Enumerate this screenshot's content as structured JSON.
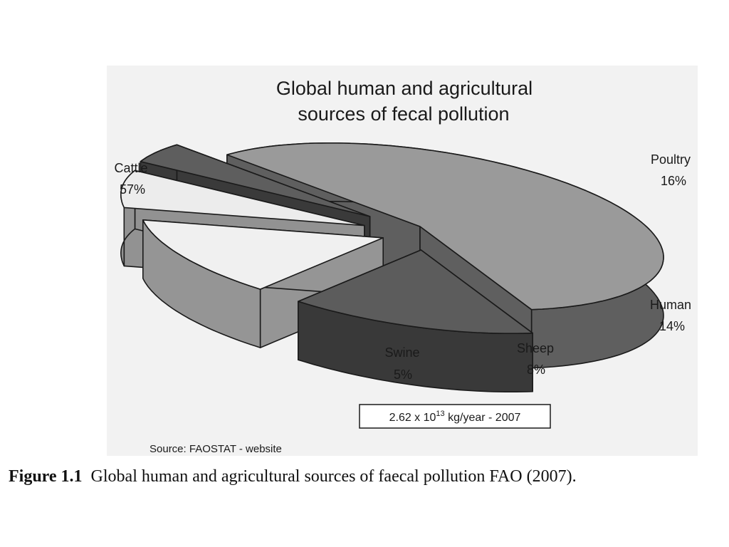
{
  "chart_data": {
    "type": "pie",
    "style": "3d-exploded",
    "title": "Global human and agricultural sources of fecal pollution",
    "title_lines": [
      "Global human and agricultural",
      "sources of fecal pollution"
    ],
    "slices": [
      {
        "name": "Cattle",
        "value": 57,
        "label": "57%",
        "color": "#9a9a9a"
      },
      {
        "name": "Poultry",
        "value": 16,
        "label": "16%",
        "color": "#5c5c5c"
      },
      {
        "name": "Human",
        "value": 14,
        "label": "14%",
        "color": "#f0f0f0"
      },
      {
        "name": "Sheep",
        "value": 8,
        "label": "8%",
        "color": "#ececec"
      },
      {
        "name": "Swine",
        "value": 5,
        "label": "5%",
        "color": "#5e5e5e"
      }
    ],
    "total_box": {
      "prefix": "2.62 x 10",
      "exponent": "13",
      "suffix": " kg/year - 2007"
    },
    "source": "Source: FAOSTAT  - website"
  },
  "caption": {
    "label": "Figure 1.1",
    "text": "Global human and agricultural sources of faecal pollution FAO (2007)."
  },
  "colors": {
    "panel_background": "#f2f2f2",
    "outline": "#1a1a1a",
    "text": "#1a1a1a"
  }
}
